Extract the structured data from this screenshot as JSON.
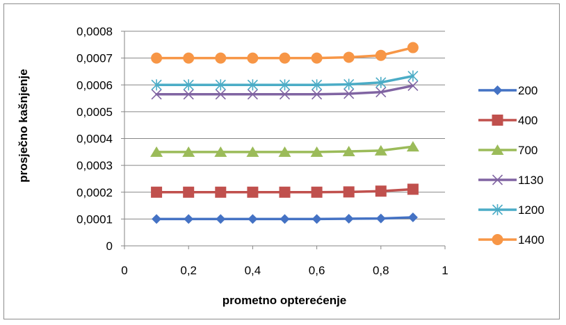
{
  "chart_data": {
    "type": "line",
    "title": "",
    "xlabel": "prometno opterećenje",
    "ylabel": "prosječno kašnjenje",
    "xlim": [
      0,
      1
    ],
    "ylim": [
      0,
      0.0008
    ],
    "x_ticks": [
      0,
      0.2,
      0.4,
      0.6,
      0.8,
      1
    ],
    "x_tick_labels": [
      "0",
      "0,2",
      "0,4",
      "0,6",
      "0,8",
      "1"
    ],
    "y_ticks": [
      0,
      0.0001,
      0.0002,
      0.0003,
      0.0004,
      0.0005,
      0.0006,
      0.0007,
      0.0008
    ],
    "y_tick_labels": [
      "0",
      "0,0001",
      "0,0002",
      "0,0003",
      "0,0004",
      "0,0005",
      "0,0006",
      "0,0007",
      "0,0008"
    ],
    "grid": "horizontal",
    "legend_position": "right",
    "x": [
      0.1,
      0.2,
      0.3,
      0.4,
      0.5,
      0.6,
      0.7,
      0.8,
      0.9
    ],
    "series": [
      {
        "name": "200",
        "color": "#4472C4",
        "marker": "diamond",
        "values": [
          0.0001,
          0.0001,
          0.0001,
          0.0001,
          0.0001,
          0.0001,
          0.000101,
          0.000102,
          0.000106
        ]
      },
      {
        "name": "400",
        "color": "#C0504D",
        "marker": "square",
        "values": [
          0.0002,
          0.0002,
          0.0002,
          0.0002,
          0.0002,
          0.0002,
          0.000201,
          0.000204,
          0.000211
        ]
      },
      {
        "name": "700",
        "color": "#9BBB59",
        "marker": "triangle",
        "values": [
          0.00035,
          0.00035,
          0.00035,
          0.00035,
          0.00035,
          0.00035,
          0.000352,
          0.000355,
          0.00037
        ]
      },
      {
        "name": "1130",
        "color": "#8064A2",
        "marker": "x",
        "values": [
          0.000565,
          0.000565,
          0.000565,
          0.000565,
          0.000565,
          0.000565,
          0.000567,
          0.000573,
          0.000597
        ]
      },
      {
        "name": "1200",
        "color": "#4BACC6",
        "marker": "star",
        "values": [
          0.0006,
          0.0006,
          0.0006,
          0.0006,
          0.0006,
          0.0006,
          0.000602,
          0.000609,
          0.000633
        ]
      },
      {
        "name": "1400",
        "color": "#F79646",
        "marker": "circle",
        "values": [
          0.0007,
          0.0007,
          0.0007,
          0.0007,
          0.0007,
          0.0007,
          0.000703,
          0.00071,
          0.000739
        ]
      }
    ]
  }
}
